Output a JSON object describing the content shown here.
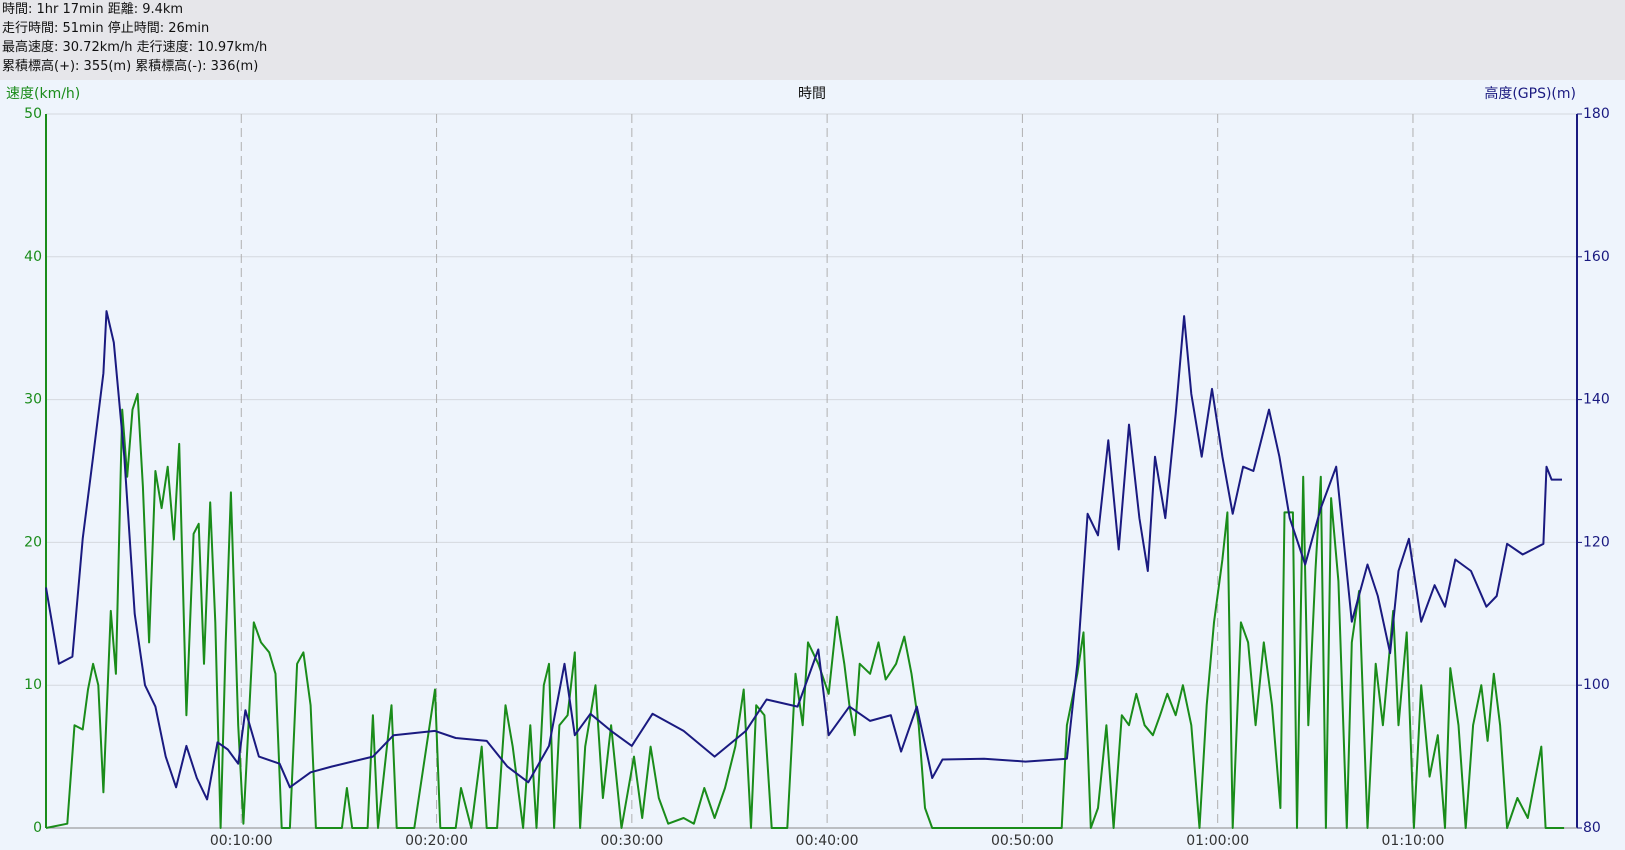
{
  "header": {
    "lines": [
      "時間: 1hr 17min 距離: 9.4km",
      "走行時間: 51min 停止時間: 26min",
      "最高速度: 30.72km/h 走行速度: 10.97km/h",
      "累積標高(+): 355(m) 累積標高(-): 336(m)"
    ]
  },
  "chart_data": {
    "type": "line",
    "x_label": "時間",
    "y_label": "速度(km/h)",
    "y2_label": "高度(GPS)(m)",
    "xlim": [
      0,
      78.4
    ],
    "xticks": [
      {
        "value": 10,
        "label": "00:10:00"
      },
      {
        "value": 20,
        "label": "00:20:00"
      },
      {
        "value": 30,
        "label": "00:30:00"
      },
      {
        "value": 40,
        "label": "00:40:00"
      },
      {
        "value": 50,
        "label": "00:50:00"
      },
      {
        "value": 60,
        "label": "01:00:00"
      },
      {
        "value": 70,
        "label": "01:10:00"
      }
    ],
    "ylim": [
      0,
      50
    ],
    "yticks": [
      0,
      10,
      20,
      30,
      40,
      50
    ],
    "y2lim": [
      80,
      180
    ],
    "y2ticks": [
      80,
      100,
      120,
      140,
      160,
      180
    ],
    "grid": true,
    "series": [
      {
        "name": "速度",
        "color": "#1a8c1a",
        "x": [
          0,
          1.09,
          1.46,
          1.88,
          2.15,
          2.41,
          2.68,
          2.94,
          3.32,
          3.58,
          3.9,
          4.16,
          4.43,
          4.69,
          4.96,
          5.28,
          5.6,
          5.92,
          6.23,
          6.55,
          6.82,
          7.19,
          7.56,
          7.82,
          8.09,
          8.41,
          8.67,
          8.94,
          9.2,
          9.47,
          9.84,
          10.11,
          10.64,
          11.01,
          11.43,
          11.75,
          12.07,
          12.49,
          12.86,
          13.18,
          13.55,
          13.82,
          15.15,
          15.41,
          15.68,
          16.47,
          16.74,
          17,
          17.69,
          17.96,
          18.86,
          19.92,
          20.19,
          20.98,
          21.25,
          21.78,
          22.31,
          22.57,
          23.1,
          23.53,
          23.9,
          24.43,
          24.8,
          25.12,
          25.49,
          25.76,
          26.02,
          26.29,
          26.71,
          27.08,
          27.35,
          27.61,
          28.14,
          28.52,
          28.94,
          29.47,
          30.11,
          30.53,
          30.96,
          31.38,
          31.86,
          32.65,
          33.18,
          33.71,
          34.24,
          34.77,
          35.3,
          35.73,
          36.1,
          36.37,
          36.79,
          37.16,
          37.96,
          38.38,
          38.75,
          39.02,
          39.55,
          40.08,
          40.5,
          40.88,
          41.14,
          41.41,
          41.67,
          42.2,
          42.63,
          43,
          43.53,
          43.95,
          44.32,
          44.69,
          45.01,
          45.38,
          46.44,
          52.01,
          52.28,
          52.81,
          53.13,
          53.5,
          53.87,
          54.3,
          54.67,
          55.09,
          55.46,
          55.83,
          56.26,
          56.68,
          57.05,
          57.42,
          57.85,
          58.22,
          58.65,
          59.07,
          59.44,
          59.81,
          60.24,
          60.5,
          60.77,
          61.19,
          61.56,
          61.94,
          62.36,
          62.78,
          63.21,
          63.42,
          63.85,
          64.06,
          64.38,
          64.64,
          65.01,
          65.28,
          65.54,
          65.81,
          66.18,
          66.61,
          66.87,
          67.24,
          67.67,
          68.09,
          68.46,
          68.99,
          69.26,
          69.68,
          70.05,
          70.42,
          70.85,
          71.27,
          71.64,
          71.91,
          72.33,
          72.7,
          73.08,
          73.5,
          73.82,
          74.14,
          74.46,
          74.82,
          75.35,
          75.88,
          76.57,
          76.79,
          77.74
        ],
        "values": [
          0,
          0.3,
          7.2,
          6.9,
          9.7,
          11.5,
          10,
          2.5,
          15.2,
          10.8,
          29.3,
          24.6,
          29.3,
          30.4,
          23.9,
          13,
          25,
          22.4,
          25.3,
          20.2,
          26.9,
          7.9,
          20.6,
          21.3,
          11.5,
          22.8,
          14.4,
          0,
          13,
          23.5,
          7.2,
          0.3,
          14.4,
          13,
          12.3,
          10.8,
          0,
          0,
          11.5,
          12.3,
          8.6,
          0,
          0,
          2.8,
          0,
          0,
          7.9,
          0,
          8.6,
          0,
          0,
          9.7,
          0,
          0,
          2.8,
          0,
          5.7,
          0,
          0,
          8.6,
          5.7,
          0,
          7.2,
          0,
          10,
          11.5,
          0,
          7.2,
          7.9,
          12.3,
          0,
          5.7,
          10,
          2.1,
          7.2,
          0,
          5,
          0.7,
          5.7,
          2.1,
          0.3,
          0.7,
          0.3,
          2.8,
          0.7,
          2.8,
          5.7,
          9.7,
          0,
          8.6,
          7.9,
          0,
          0,
          10.8,
          7.2,
          13,
          11.5,
          9.4,
          14.8,
          11.5,
          8.6,
          6.5,
          11.5,
          10.8,
          13,
          10.4,
          11.5,
          13.4,
          10.8,
          7.2,
          1.4,
          0,
          0,
          0,
          7.2,
          10.8,
          13.7,
          0,
          1.4,
          7.2,
          0,
          7.9,
          7.2,
          9.4,
          7.2,
          6.5,
          7.9,
          9.4,
          7.9,
          10,
          7.2,
          0,
          8.6,
          14.4,
          18.8,
          22.1,
          0,
          14.4,
          13,
          7.2,
          13,
          8.6,
          1.4,
          22.1,
          22.1,
          0,
          24.6,
          7.2,
          18.1,
          24.6,
          0,
          23.1,
          17.3,
          0,
          13,
          16.6,
          0,
          11.5,
          7.2,
          15.2,
          7.2,
          13.7,
          0,
          10,
          3.6,
          6.5,
          0,
          11.2,
          7.2,
          0,
          7.2,
          10,
          6.1,
          10.8,
          7.2,
          0,
          2.1,
          0.7,
          5.7,
          0,
          0
        ]
      },
      {
        "name": "高度",
        "color": "#1a1a80",
        "axis": "y2",
        "x": [
          0,
          0.29,
          0.66,
          1.35,
          1.88,
          2.41,
          2.94,
          3.1,
          3.47,
          4.01,
          4.54,
          5.07,
          5.6,
          6.13,
          6.66,
          7.19,
          7.72,
          8.25,
          8.78,
          9.31,
          9.84,
          10.21,
          10.9,
          11.96,
          12.49,
          13.55,
          14.62,
          16.74,
          17.8,
          19.92,
          20.98,
          22.57,
          23.63,
          24.7,
          25.76,
          26.55,
          27.08,
          27.88,
          28.94,
          30,
          31.06,
          32.65,
          34.24,
          35.84,
          36.9,
          38.49,
          39.55,
          40.08,
          41.14,
          42.2,
          43.26,
          43.79,
          44.59,
          45.38,
          45.91,
          48.04,
          50.16,
          52.28,
          52.81,
          53.34,
          53.87,
          54.4,
          54.93,
          55.46,
          55.99,
          56.42,
          56.79,
          57.32,
          57.85,
          58.28,
          58.65,
          59.18,
          59.71,
          60.24,
          60.77,
          61.3,
          61.83,
          62.63,
          63.16,
          63.69,
          64.48,
          65.28,
          66.07,
          66.87,
          67.67,
          68.2,
          68.83,
          69.26,
          69.79,
          70.42,
          71.11,
          71.64,
          72.17,
          72.97,
          73.76,
          74.29,
          74.82,
          75.62,
          76.68,
          76.84,
          77.1,
          77.63
        ],
        "values": [
          113.7,
          109,
          103,
          104,
          120.5,
          132,
          143.7,
          152.4,
          148,
          132,
          110,
          100,
          97,
          90,
          85.7,
          91.5,
          87,
          84,
          92,
          91,
          89,
          96.5,
          90,
          89,
          85.7,
          87.8,
          88.6,
          90,
          93,
          93.6,
          92.6,
          92.2,
          88.6,
          86.4,
          91.5,
          103,
          93,
          96,
          93.6,
          91.5,
          96,
          93.6,
          90,
          93.6,
          98,
          97,
          105,
          93,
          97,
          95,
          95.8,
          90.7,
          97,
          87,
          89.6,
          89.7,
          89.3,
          89.7,
          103,
          124,
          121,
          134.3,
          119,
          136.5,
          123.4,
          116,
          132,
          123.4,
          138,
          151.7,
          140.8,
          132,
          141.5,
          132,
          124,
          130.6,
          130,
          138.6,
          132,
          123.4,
          116.9,
          124.8,
          130.6,
          108.9,
          116.9,
          112.5,
          104.5,
          116,
          120.5,
          108.9,
          114,
          111,
          117.6,
          116,
          111,
          112.5,
          119.8,
          118.3,
          119.8,
          130.6,
          128.8,
          128.8
        ]
      }
    ]
  }
}
